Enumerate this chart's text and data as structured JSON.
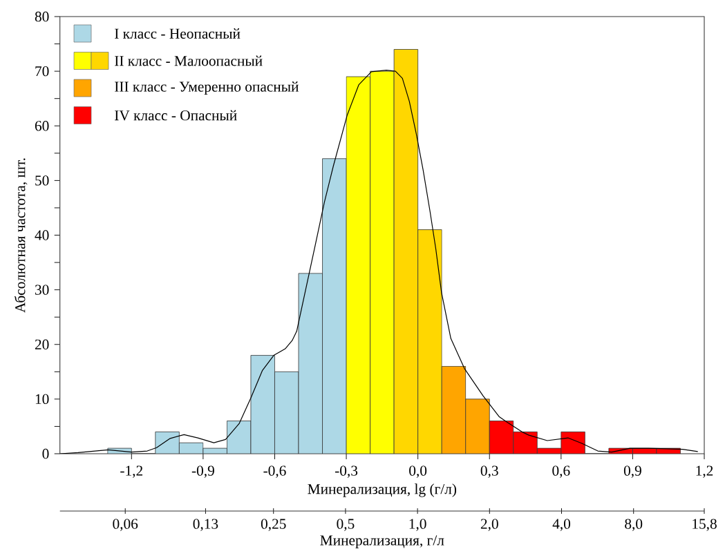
{
  "chart_data": {
    "type": "histogram",
    "xlabel": "Минерализация, lg (г/л)",
    "ylabel": "Абсолютная частота, шт.",
    "x2label": "Минерализация, г/л",
    "bins": [
      -1.3,
      -1.2,
      -1.1,
      -1.0,
      -0.9,
      -0.8,
      -0.7,
      -0.6,
      -0.5,
      -0.4,
      -0.3,
      -0.2,
      -0.1,
      0.0,
      0.1,
      0.2,
      0.3,
      0.4,
      0.5,
      0.6,
      0.7,
      0.8,
      0.9,
      1.0,
      1.1
    ],
    "series": [
      {
        "name": "I класс - Неопасный",
        "color": "#add8e6",
        "values": [
          1,
          0,
          4,
          2,
          1,
          6,
          18,
          15,
          33,
          54,
          null,
          null,
          null,
          null,
          null,
          null,
          null,
          null,
          null,
          null,
          null,
          null,
          null,
          null
        ]
      },
      {
        "name": "II класс - Малоопасный",
        "color": "#ffff00",
        "colors": [
          null,
          null,
          null,
          null,
          null,
          null,
          null,
          null,
          null,
          null,
          "#ffff00",
          "#ffff00",
          "#ffd700",
          "#ffd700",
          null,
          null,
          null,
          null,
          null,
          null,
          null,
          null,
          null,
          null
        ],
        "values": [
          null,
          null,
          null,
          null,
          null,
          null,
          null,
          null,
          null,
          null,
          69,
          70,
          74,
          41,
          null,
          null,
          null,
          null,
          null,
          null,
          null,
          null,
          null,
          null
        ]
      },
      {
        "name": "III класс - Умеренно опасный",
        "color": "#ffa500",
        "values": [
          null,
          null,
          null,
          null,
          null,
          null,
          null,
          null,
          null,
          null,
          null,
          null,
          null,
          null,
          16,
          10,
          null,
          null,
          null,
          null,
          null,
          null,
          null,
          null
        ]
      },
      {
        "name": "IV класс - Опасный",
        "color": "#ff0000",
        "values": [
          null,
          null,
          null,
          null,
          null,
          null,
          null,
          null,
          null,
          null,
          null,
          null,
          null,
          null,
          null,
          null,
          6,
          4,
          1,
          4,
          0,
          1,
          1,
          1
        ]
      },
      {
        "type": "line",
        "color": "#000000",
        "x": [
          -1.5,
          -1.424,
          -1.298,
          -1.2,
          -1.134,
          -1.095,
          -1.038,
          -0.98,
          -0.922,
          -0.855,
          -0.806,
          -0.749,
          -0.7,
          -0.652,
          -0.604,
          -0.556,
          -0.527,
          -0.508,
          -0.431,
          -0.392,
          -0.354,
          -0.296,
          -0.248,
          -0.195,
          -0.132,
          -0.094,
          -0.065,
          -0.036,
          -0.007,
          0.022,
          0.051,
          0.075,
          0.099,
          0.138,
          0.195,
          0.273,
          0.34,
          0.369,
          0.436,
          0.465,
          0.542,
          0.629,
          0.687,
          0.754,
          0.812,
          0.889,
          0.966,
          1.043,
          1.11,
          1.173
        ],
        "values": [
          0,
          0.2,
          0.7,
          0.3,
          0.5,
          1.1,
          2.8,
          3.5,
          2.9,
          2.0,
          2.6,
          5.5,
          10.2,
          15.2,
          18,
          19.2,
          20.7,
          22.4,
          38,
          46,
          52.7,
          62,
          67.5,
          69.9,
          70.2,
          70,
          68.7,
          64.5,
          58.6,
          51.9,
          44.3,
          37.5,
          29.5,
          21.1,
          15.6,
          10.6,
          6.8,
          5.9,
          4.0,
          3.4,
          2.4,
          2.9,
          1.9,
          0.5,
          0.3,
          1.0,
          1.0,
          0.9,
          0.8,
          0.4
        ]
      }
    ],
    "xlim": [
      -1.5,
      1.2
    ],
    "xticks": [
      {
        "value": -1.2,
        "label": "-1,2"
      },
      {
        "value": -0.9,
        "label": "-0,9"
      },
      {
        "value": -0.6,
        "label": "-0,6"
      },
      {
        "value": -0.3,
        "label": "-0,3"
      },
      {
        "value": 0.0,
        "label": "0,0"
      },
      {
        "value": 0.3,
        "label": "0,3"
      },
      {
        "value": 0.6,
        "label": "0,6"
      },
      {
        "value": 0.9,
        "label": "0,9"
      },
      {
        "value": 1.2,
        "label": "1,2"
      }
    ],
    "x2lim": [
      0.032,
      15.8
    ],
    "x2ticks": [
      {
        "value": 0.06,
        "label": "0,06"
      },
      {
        "value": 0.13,
        "label": "0,13"
      },
      {
        "value": 0.25,
        "label": "0,25"
      },
      {
        "value": 0.5,
        "label": "0,5"
      },
      {
        "value": 1.0,
        "label": "1,0"
      },
      {
        "value": 2.0,
        "label": "2,0"
      },
      {
        "value": 4.0,
        "label": "4,0"
      },
      {
        "value": 8.0,
        "label": "8,0"
      },
      {
        "value": 15.8,
        "label": "15,8"
      }
    ],
    "log": "x2",
    "ylim": [
      0,
      80
    ],
    "yticks": [
      0,
      {
        "value": 5,
        "label": null
      },
      10,
      {
        "value": 15,
        "label": null
      },
      20,
      {
        "value": 25,
        "label": null
      },
      30,
      {
        "value": 35,
        "label": null
      },
      40,
      {
        "value": 45,
        "label": null
      },
      50,
      {
        "value": 55,
        "label": null
      },
      60,
      {
        "value": 65,
        "label": null
      },
      70,
      {
        "value": 75,
        "label": null
      },
      80
    ],
    "legend": "top left"
  }
}
